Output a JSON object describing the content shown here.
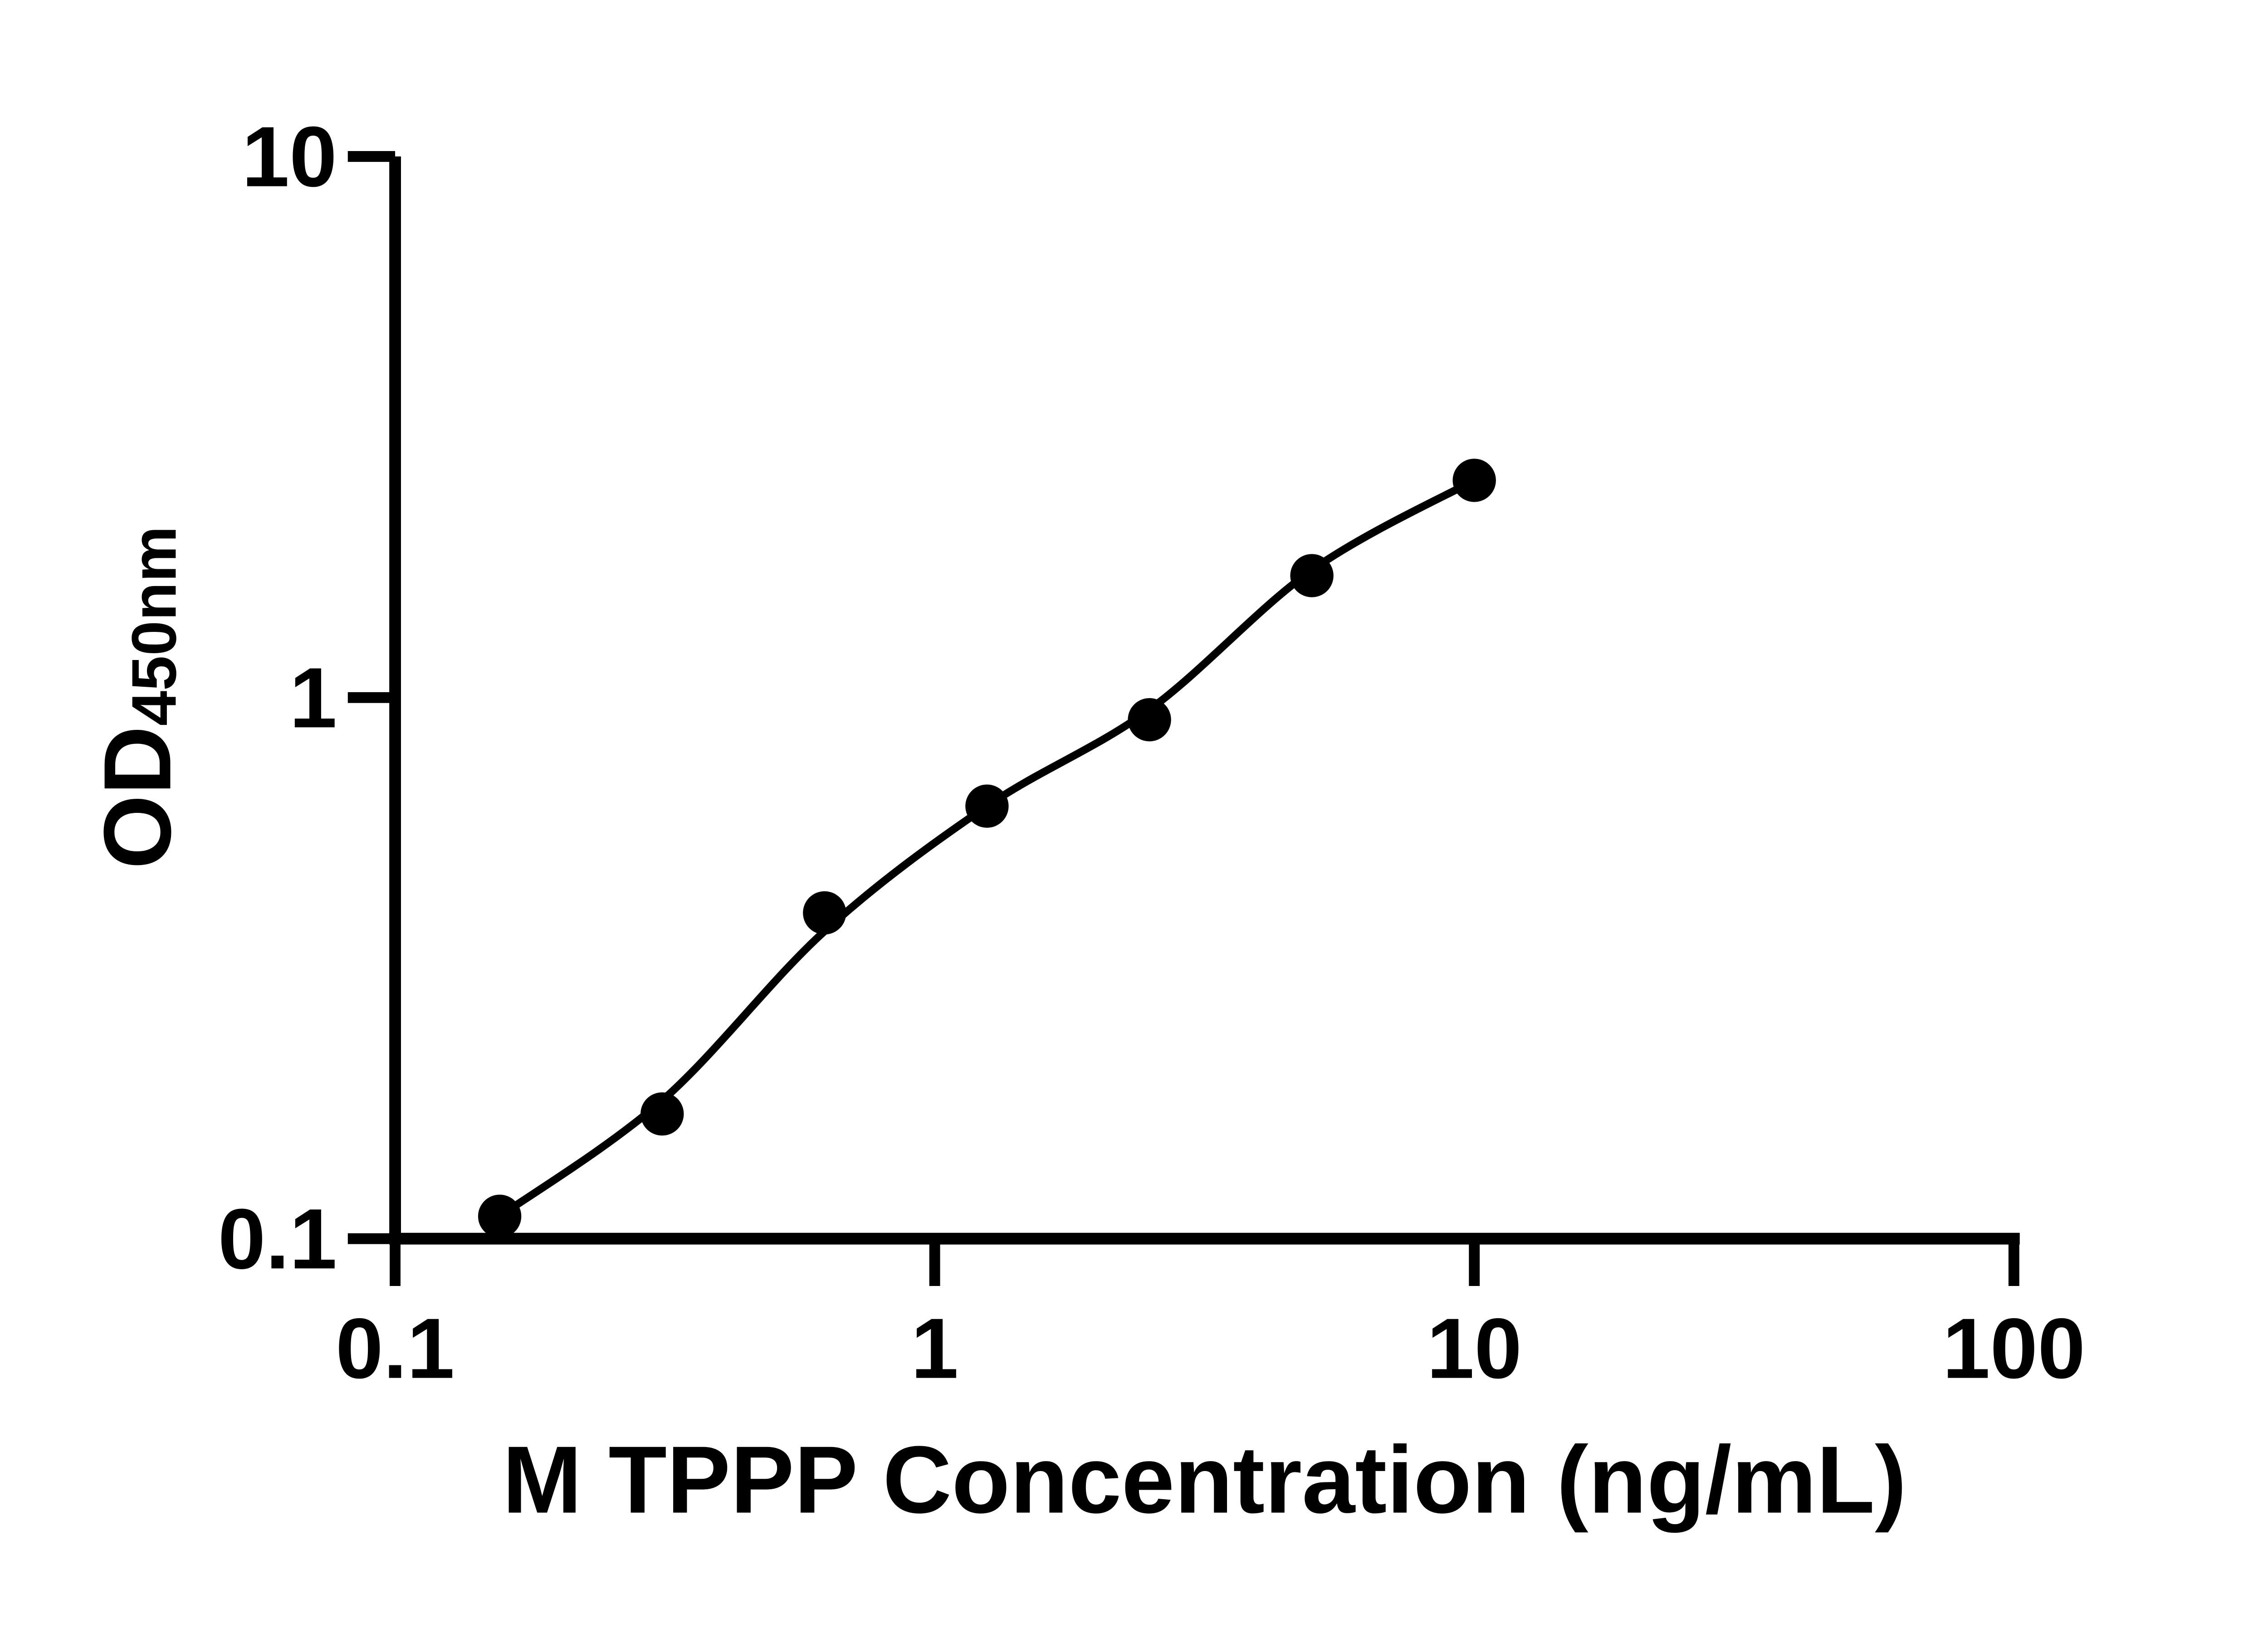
{
  "figure": {
    "background": "#ffffff",
    "ink": "#000000",
    "description": "ELISA standard curve, log-log scatter plot with fitted line"
  },
  "chart_data": {
    "type": "scatter",
    "title": "",
    "xlabel": "M TPPP Concentration (ng/mL)",
    "ylabel_main": "OD",
    "ylabel_sub": "450nm",
    "x_scale": "log",
    "y_scale": "log",
    "xlim": [
      0.1,
      100
    ],
    "ylim": [
      0.1,
      10
    ],
    "x_ticks": [
      0.1,
      1,
      10,
      100
    ],
    "x_tick_labels": [
      "0.1",
      "1",
      "10",
      "100"
    ],
    "y_ticks": [
      0.1,
      1,
      10
    ],
    "y_tick_labels": [
      "0.1",
      "1",
      "10"
    ],
    "grid": false,
    "legend": "none",
    "marker": {
      "shape": "circle",
      "color": "#000000"
    },
    "series": [
      {
        "name": "standard-points",
        "x": [
          0.15625,
          0.3125,
          0.625,
          1.25,
          2.5,
          5,
          10
        ],
        "y": [
          0.11,
          0.17,
          0.4,
          0.63,
          0.91,
          1.68,
          2.52
        ]
      }
    ],
    "fit_curve": {
      "name": "fitted-standard-curve",
      "x": [
        0.15625,
        0.3125,
        0.625,
        1.25,
        2.5,
        5,
        10
      ],
      "y": [
        0.11,
        0.18,
        0.37,
        0.63,
        0.95,
        1.72,
        2.52
      ]
    }
  }
}
